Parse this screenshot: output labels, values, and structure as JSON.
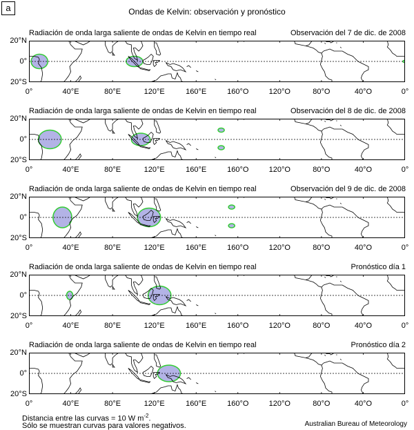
{
  "figure_label": "a",
  "main_title": "Ondas de Kelvin: observación y pronóstico",
  "lat_labels": [
    "20°N",
    "0°",
    "20°S"
  ],
  "lon_labels": [
    "0°",
    "40°E",
    "80°E",
    "120°E",
    "160°E",
    "160°O",
    "120°O",
    "80°O",
    "40°O",
    "0°"
  ],
  "panels": [
    {
      "title_left": "Radiación de onda larga saliente de ondas de Kelvin en tiempo real",
      "title_right": "Observación del 7 de dic. de 2008"
    },
    {
      "title_left": "Radiación de onda larga saliente de ondas de Kelvin en tiempo real",
      "title_right": "Observación del 8 de dic. de 2008"
    },
    {
      "title_left": "Radiación de onda larga saliente de ondas de Kelvin en tiempo real",
      "title_right": "Observación del 9 de dic. de 2008"
    },
    {
      "title_left": "Radiación de onda larga saliente de ondas de Kelvin en tiempo real",
      "title_right": "Pronóstico día 1"
    },
    {
      "title_left": "Radiación de onda larga saliente de ondas de Kelvin en tiempo real",
      "title_right": "Pronóstico día 2"
    }
  ],
  "footnote_line1": "Distancia entre las curvas = 10 W m",
  "footnote_sup": "-2",
  "footnote_line1_end": ".",
  "footnote_line2": "Sólo se muestran curvas para valores negativos.",
  "credit": "Australian Bureau of Meteorology",
  "colors": {
    "anomaly_fill": "#b3b3e6",
    "anomaly_outline": "#33cc33",
    "coast": "#000000",
    "equator": "#000000"
  },
  "anomalies": [
    [
      {
        "lon": 10,
        "lat": 0,
        "rlon": 8,
        "rlat": 7
      },
      {
        "lon": 101,
        "lat": 0,
        "rlon": 8,
        "rlat": 5
      },
      {
        "lon": 359,
        "lat": 0,
        "rlon": 1,
        "rlat": 1
      }
    ],
    [
      {
        "lon": 20,
        "lat": 0,
        "rlon": 11,
        "rlat": 9
      },
      {
        "lon": 107,
        "lat": 0,
        "rlon": 9,
        "rlat": 6
      },
      {
        "lon": 184,
        "lat": 9,
        "rlon": 3,
        "rlat": 2
      },
      {
        "lon": 184,
        "lat": -8,
        "rlon": 3,
        "rlat": 2
      }
    ],
    [
      {
        "lon": 32,
        "lat": 0,
        "rlon": 9,
        "rlat": 10
      },
      {
        "lon": 115,
        "lat": 0,
        "rlon": 11,
        "rlat": 9
      },
      {
        "lon": 194,
        "lat": 10,
        "rlon": 3,
        "rlat": 2
      },
      {
        "lon": 194,
        "lat": -8,
        "rlon": 3,
        "rlat": 2
      }
    ],
    [
      {
        "lon": 39,
        "lat": 0,
        "rlon": 3,
        "rlat": 4
      },
      {
        "lon": 125,
        "lat": 0,
        "rlon": 11,
        "rlat": 9
      }
    ],
    [
      {
        "lon": 134,
        "lat": 0,
        "rlon": 11,
        "rlat": 8
      }
    ]
  ]
}
